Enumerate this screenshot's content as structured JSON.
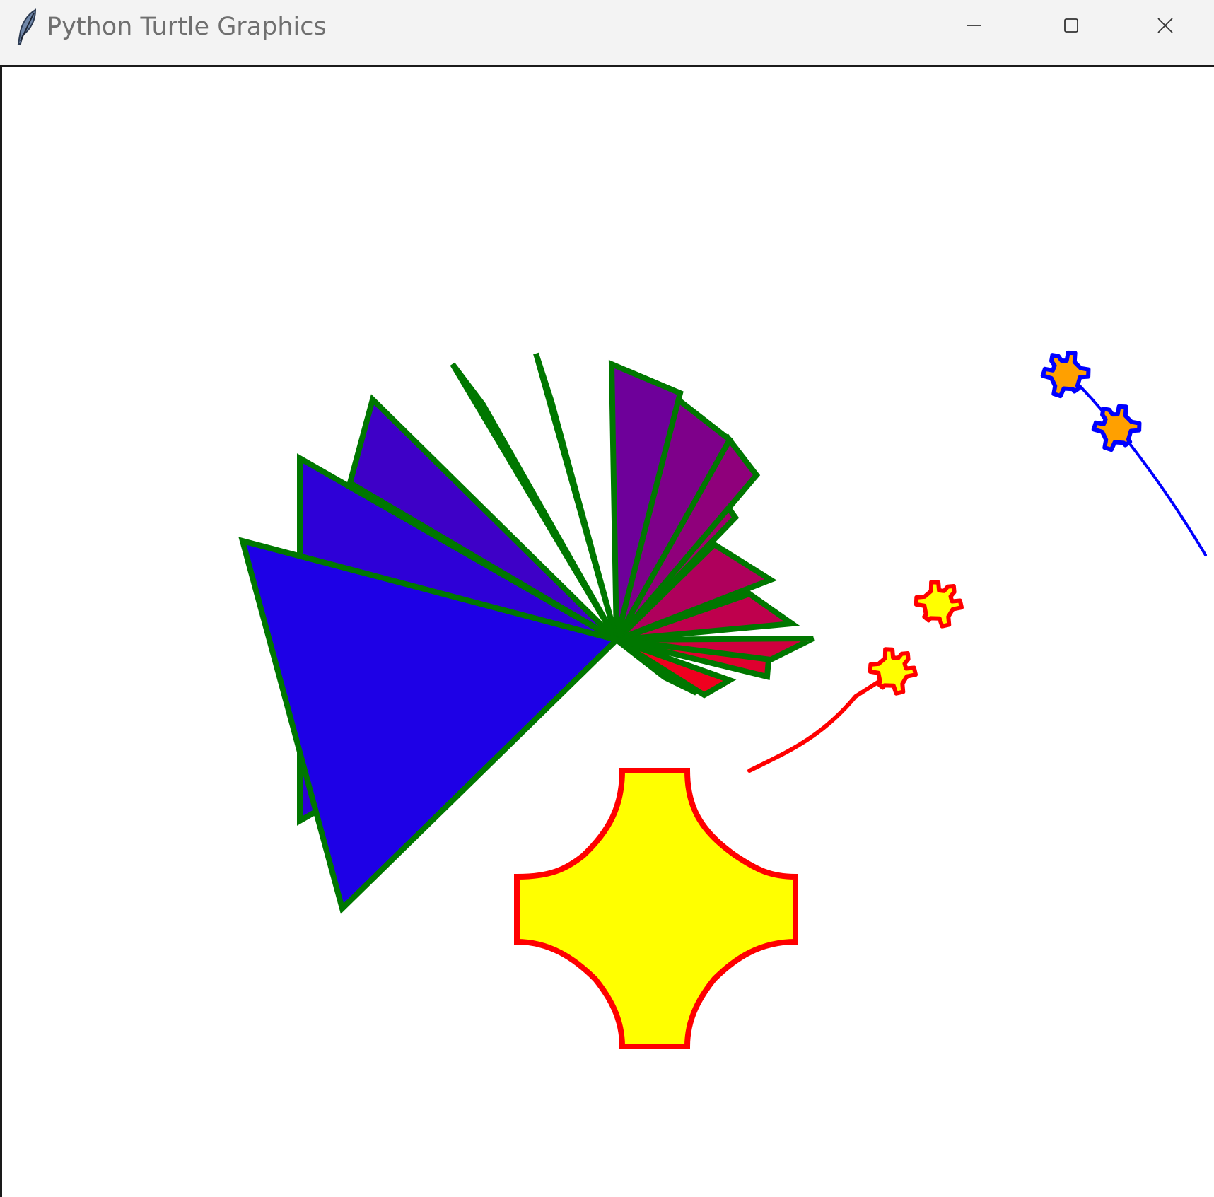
{
  "window": {
    "title": "Python Turtle Graphics",
    "app_icon": "feather-icon",
    "controls": {
      "minimize_icon": "minimize-icon",
      "maximize_icon": "maximize-icon",
      "close_icon": "close-icon"
    }
  },
  "canvas": {
    "background": "#ffffff",
    "fan": {
      "outline_color": "#007700",
      "fill_start": "#1e00e6",
      "fill_end": "#ff0010"
    },
    "cross_shape": {
      "fill_color": "#ffff00",
      "outline_color": "#ff0000"
    },
    "red_turtles": {
      "shell_color": "#ffff00",
      "outline_color": "#ff0000",
      "trail_color": "#ff0000"
    },
    "blue_turtles": {
      "shell_color": "#ffa000",
      "outline_color": "#0000ff",
      "trail_color": "#0000ff"
    }
  }
}
